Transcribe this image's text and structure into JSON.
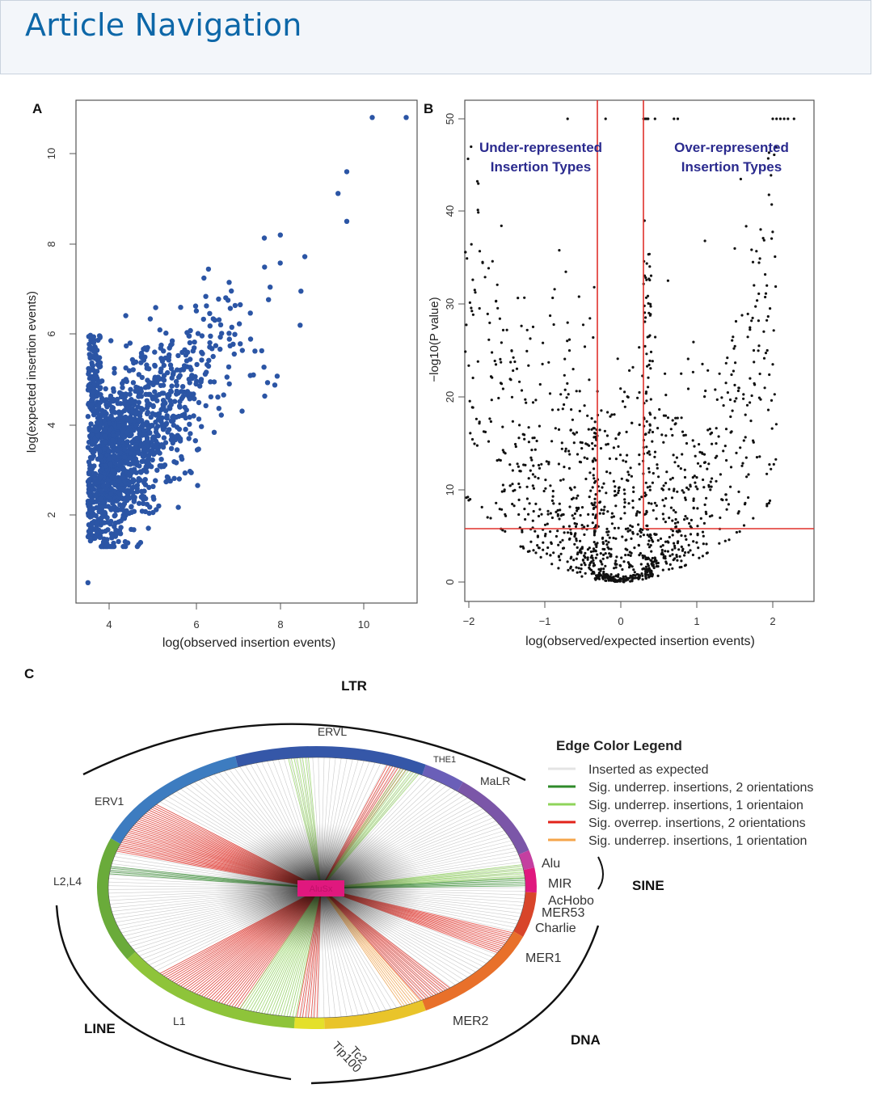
{
  "header": {
    "title": "Article Navigation"
  },
  "figure": {
    "panel_a": {
      "label": "A",
      "xlabel": "log(observed insertion events)",
      "ylabel": "log(expected insertion events)",
      "x_ticks": [
        "4",
        "6",
        "8",
        "10"
      ],
      "y_ticks": [
        "2",
        "4",
        "6",
        "8",
        "10"
      ],
      "point_color": "#2b55a5"
    },
    "panel_b": {
      "label": "B",
      "xlabel": "log(observed/expected insertion events)",
      "ylabel": "−log10(P value)",
      "x_ticks": [
        "−2",
        "−1",
        "0",
        "1",
        "2"
      ],
      "y_ticks": [
        "0",
        "10",
        "20",
        "30",
        "40",
        "50"
      ],
      "under_line1": "Under-represented",
      "under_line2": "Insertion Types",
      "over_line1": "Over-represented",
      "over_line2": "Insertion Types",
      "annotation_color": "#2a2a8e",
      "threshold_color": "#e0312b"
    },
    "panel_c": {
      "label": "C",
      "class_labels": {
        "ltr": "LTR",
        "sine": "SINE",
        "line": "LINE",
        "dna": "DNA"
      },
      "family_labels": {
        "ervl": "ERVL",
        "the1": "THE1",
        "malr": "MaLR",
        "erv1": "ERV1",
        "l2l4": "L2,L4",
        "alu": "Alu",
        "mir": "MIR",
        "achobo": "AcHobo",
        "mer53": "MER53",
        "charlie": "Charlie",
        "mer1": "MER1",
        "mer2": "MER2",
        "l1": "L1",
        "tc2": "Tc2",
        "tip100": "Tip100"
      },
      "center_label": "AluSx",
      "legend": {
        "title": "Edge Color Legend",
        "items": [
          {
            "label": "Inserted as expected",
            "color": "#eeeeee"
          },
          {
            "label": "Sig. underrep. insertions, 2 orientations",
            "color": "#2f8a2a"
          },
          {
            "label": "Sig. underrep. insertions, 1 orientaion",
            "color": "#8fd45a"
          },
          {
            "label": "Sig. overrep. insertions, 2 orientations",
            "color": "#e2231a"
          },
          {
            "label": "Sig. underrep. insertions, 1 orientation",
            "color": "#f5a54a"
          }
        ]
      }
    }
  },
  "chart_data": [
    {
      "type": "scatter",
      "title": "A",
      "xlabel": "log(observed insertion events)",
      "ylabel": "log(expected insertion events)",
      "xlim": [
        3.3,
        11.5
      ],
      "ylim": [
        0,
        11
      ],
      "summary": "~1500 TE family pairs; positive correlation; dense cluster at x 3.5–6, y 1.5–6",
      "outliers": [
        {
          "x": 10.2,
          "y": 10.8
        },
        {
          "x": 11.0,
          "y": 10.8
        },
        {
          "x": 3.5,
          "y": 0.5
        },
        {
          "x": 9.6,
          "y": 9.6
        },
        {
          "x": 9.6,
          "y": 8.5
        },
        {
          "x": 8.5,
          "y": 6.2
        },
        {
          "x": 7.4,
          "y": 5.1
        }
      ]
    },
    {
      "type": "scatter",
      "title": "B (volcano plot)",
      "xlabel": "log(observed/expected insertion events)",
      "ylabel": "−log10(P value)",
      "xlim": [
        -2.1,
        2.5
      ],
      "ylim": [
        -1,
        52
      ],
      "thresholds": {
        "x_low": -0.3,
        "x_high": 0.3,
        "y": 5.8
      },
      "capped_points_y": 50,
      "highlight_points": [
        {
          "x": -1.9,
          "y": 17.6
        },
        {
          "x": -0.7,
          "y": 28
        },
        {
          "x": -0.55,
          "y": 30.8
        },
        {
          "x": 1.5,
          "y": 36
        },
        {
          "x": 1.65,
          "y": 38.4
        },
        {
          "x": 1.95,
          "y": 41.8
        },
        {
          "x": 1.9,
          "y": 33.2
        },
        {
          "x": 1.75,
          "y": 25
        },
        {
          "x": 2.0,
          "y": 23.5
        }
      ]
    }
  ]
}
